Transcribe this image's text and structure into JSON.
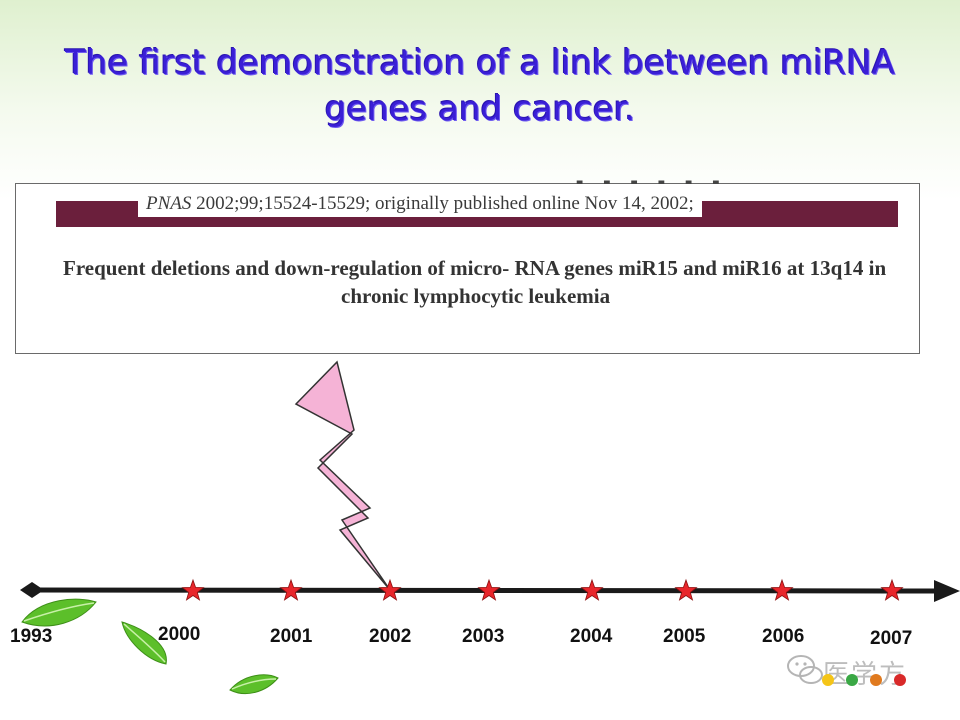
{
  "slide": {
    "title_line1": "The first demonstration of a link between miRNA",
    "title_line2": "genes and cancer."
  },
  "paper": {
    "journal_italic": "PNAS",
    "citation_rest": " 2002;99;15524-15529; originally published online Nov 14, 2002;",
    "title_line1": "Frequent deletions and down-regulation of micro- RNA genes miR15 and miR16 at 13q14 in",
    "title_line2": "chronic lymphocytic leukemia"
  },
  "timeline": {
    "highlight_year": "2002",
    "years": [
      {
        "id": "y1993",
        "label": "1993",
        "star": false
      },
      {
        "id": "y2000",
        "label": "2000",
        "star": true
      },
      {
        "id": "y2001",
        "label": "2001",
        "star": true
      },
      {
        "id": "y2002",
        "label": "2002",
        "star": true
      },
      {
        "id": "y2003",
        "label": "2003",
        "star": true
      },
      {
        "id": "y2004",
        "label": "2004",
        "star": true
      },
      {
        "id": "y2005",
        "label": "2005",
        "star": true
      },
      {
        "id": "y2006",
        "label": "2006",
        "star": true
      },
      {
        "id": "y2007",
        "label": "2007",
        "star": true
      }
    ]
  },
  "watermark": {
    "text": "医学方",
    "icon": "wechat-icon",
    "dot_colors": [
      "#f5c518",
      "#3aa845",
      "#e07a1f",
      "#d92a2a"
    ]
  },
  "colors": {
    "title": "#3a1fd6",
    "journal_bar": "#6b1f3c",
    "lightning": "#f5b3d6",
    "star": "#e8262b",
    "timeline": "#1a1a1a",
    "leaf": "#5cbf2a"
  }
}
